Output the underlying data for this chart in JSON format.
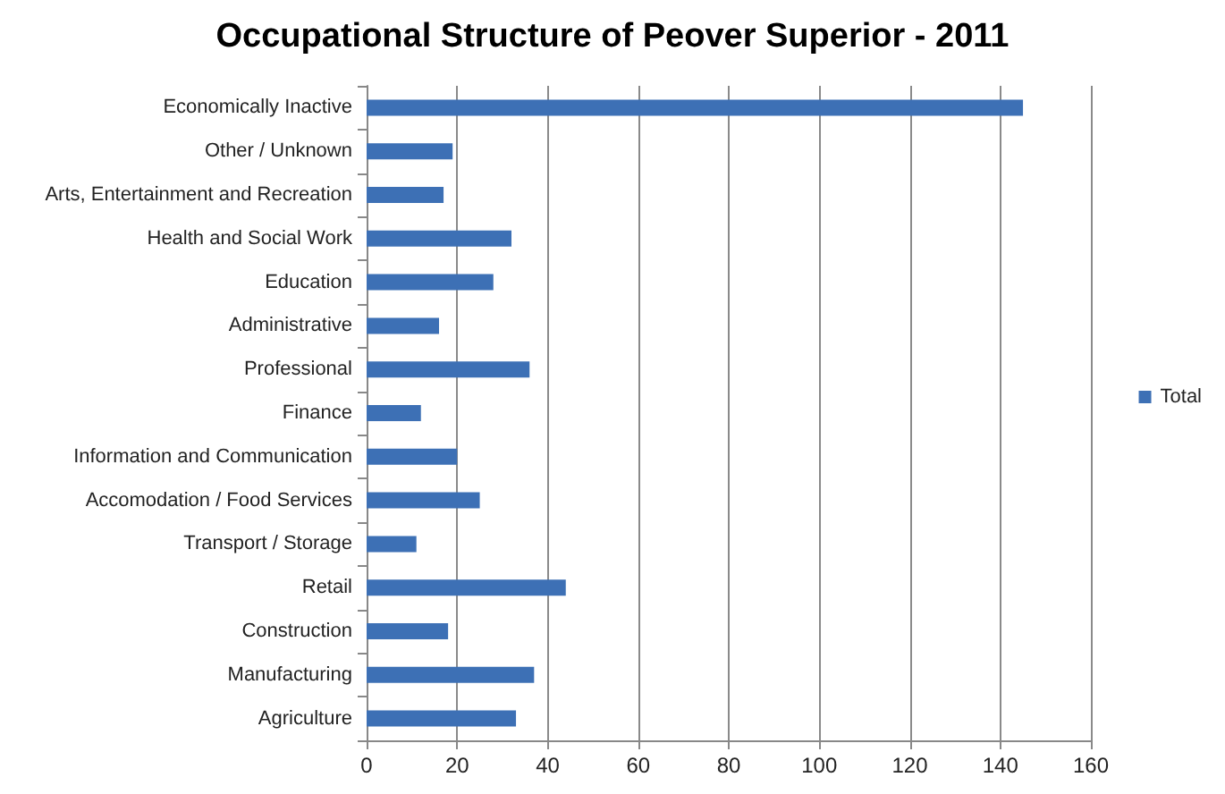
{
  "chart_data": {
    "type": "bar",
    "title": "Occupational Structure of Peover Superior - 2011",
    "orientation": "horizontal",
    "categories": [
      "Economically Inactive",
      "Other / Unknown",
      "Arts, Entertainment and Recreation",
      "Health and Social Work",
      "Education",
      "Administrative",
      "Professional",
      "Finance",
      "Information and Communication",
      "Accomodation / Food Services",
      "Transport / Storage",
      "Retail",
      "Construction",
      "Manufacturing",
      "Agriculture"
    ],
    "series": [
      {
        "name": "Total",
        "color": "#3d70b5",
        "values": [
          145,
          19,
          17,
          32,
          28,
          16,
          36,
          12,
          20,
          25,
          11,
          44,
          18,
          37,
          33
        ]
      }
    ],
    "xlim": [
      0,
      160
    ],
    "xticks": [
      0,
      20,
      40,
      60,
      80,
      100,
      120,
      140,
      160
    ],
    "grid": "x",
    "legend": "right"
  }
}
